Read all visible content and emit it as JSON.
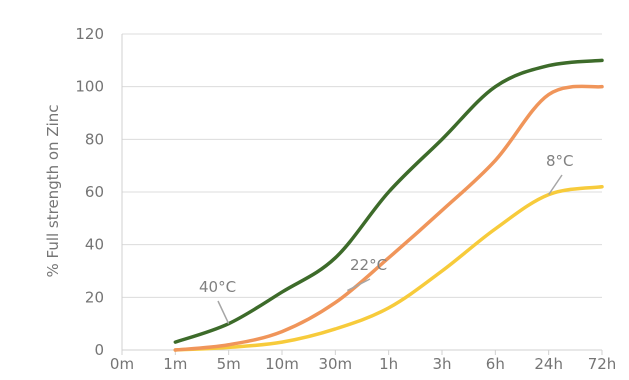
{
  "chart_data": {
    "type": "line",
    "xlabel": "",
    "ylabel": "% Full strength on Zinc",
    "categories": [
      "0m",
      "1m",
      "5m",
      "10m",
      "30m",
      "1h",
      "3h",
      "6h",
      "24h",
      "72h"
    ],
    "ylim": [
      0,
      120
    ],
    "yticks": [
      0,
      20,
      40,
      60,
      80,
      100,
      120
    ],
    "grid": true,
    "legend": "none",
    "series": [
      {
        "label": "40°C",
        "color": "#3d6b2a",
        "values": [
          null,
          3,
          10,
          22,
          35,
          60,
          80,
          100,
          108,
          110
        ]
      },
      {
        "label": "22°C",
        "color": "#f0955a",
        "values": [
          null,
          0,
          2,
          7,
          18,
          35,
          53,
          72,
          97,
          100
        ]
      },
      {
        "label": "8°C",
        "color": "#f7cb3b",
        "values": [
          null,
          0,
          1,
          3,
          8,
          16,
          30,
          46,
          59,
          62
        ]
      }
    ]
  }
}
